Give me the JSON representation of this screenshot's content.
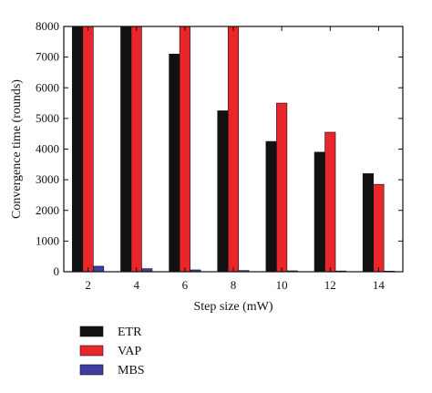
{
  "chart_data": {
    "type": "bar",
    "categories": [
      "2",
      "4",
      "6",
      "8",
      "10",
      "12",
      "14"
    ],
    "series": [
      {
        "name": "ETR",
        "color": "#111111",
        "values": [
          8000,
          8000,
          7100,
          5250,
          4250,
          3900,
          3200
        ]
      },
      {
        "name": "VAP",
        "color": "#e8262b",
        "values": [
          8000,
          8000,
          8000,
          8000,
          5500,
          4550,
          2850
        ]
      },
      {
        "name": "MBS",
        "color": "#3e3fa0",
        "values": [
          180,
          100,
          60,
          40,
          30,
          25,
          20
        ]
      }
    ],
    "title": "",
    "xlabel": "Step size (mW)",
    "ylabel": "Convergence time (rounds)",
    "ylim": [
      0,
      8000
    ],
    "yticks": [
      "0",
      "1000",
      "2000",
      "3000",
      "4000",
      "5000",
      "6000",
      "7000",
      "8000"
    ],
    "grid": false,
    "legend_position": "bottom-left"
  }
}
